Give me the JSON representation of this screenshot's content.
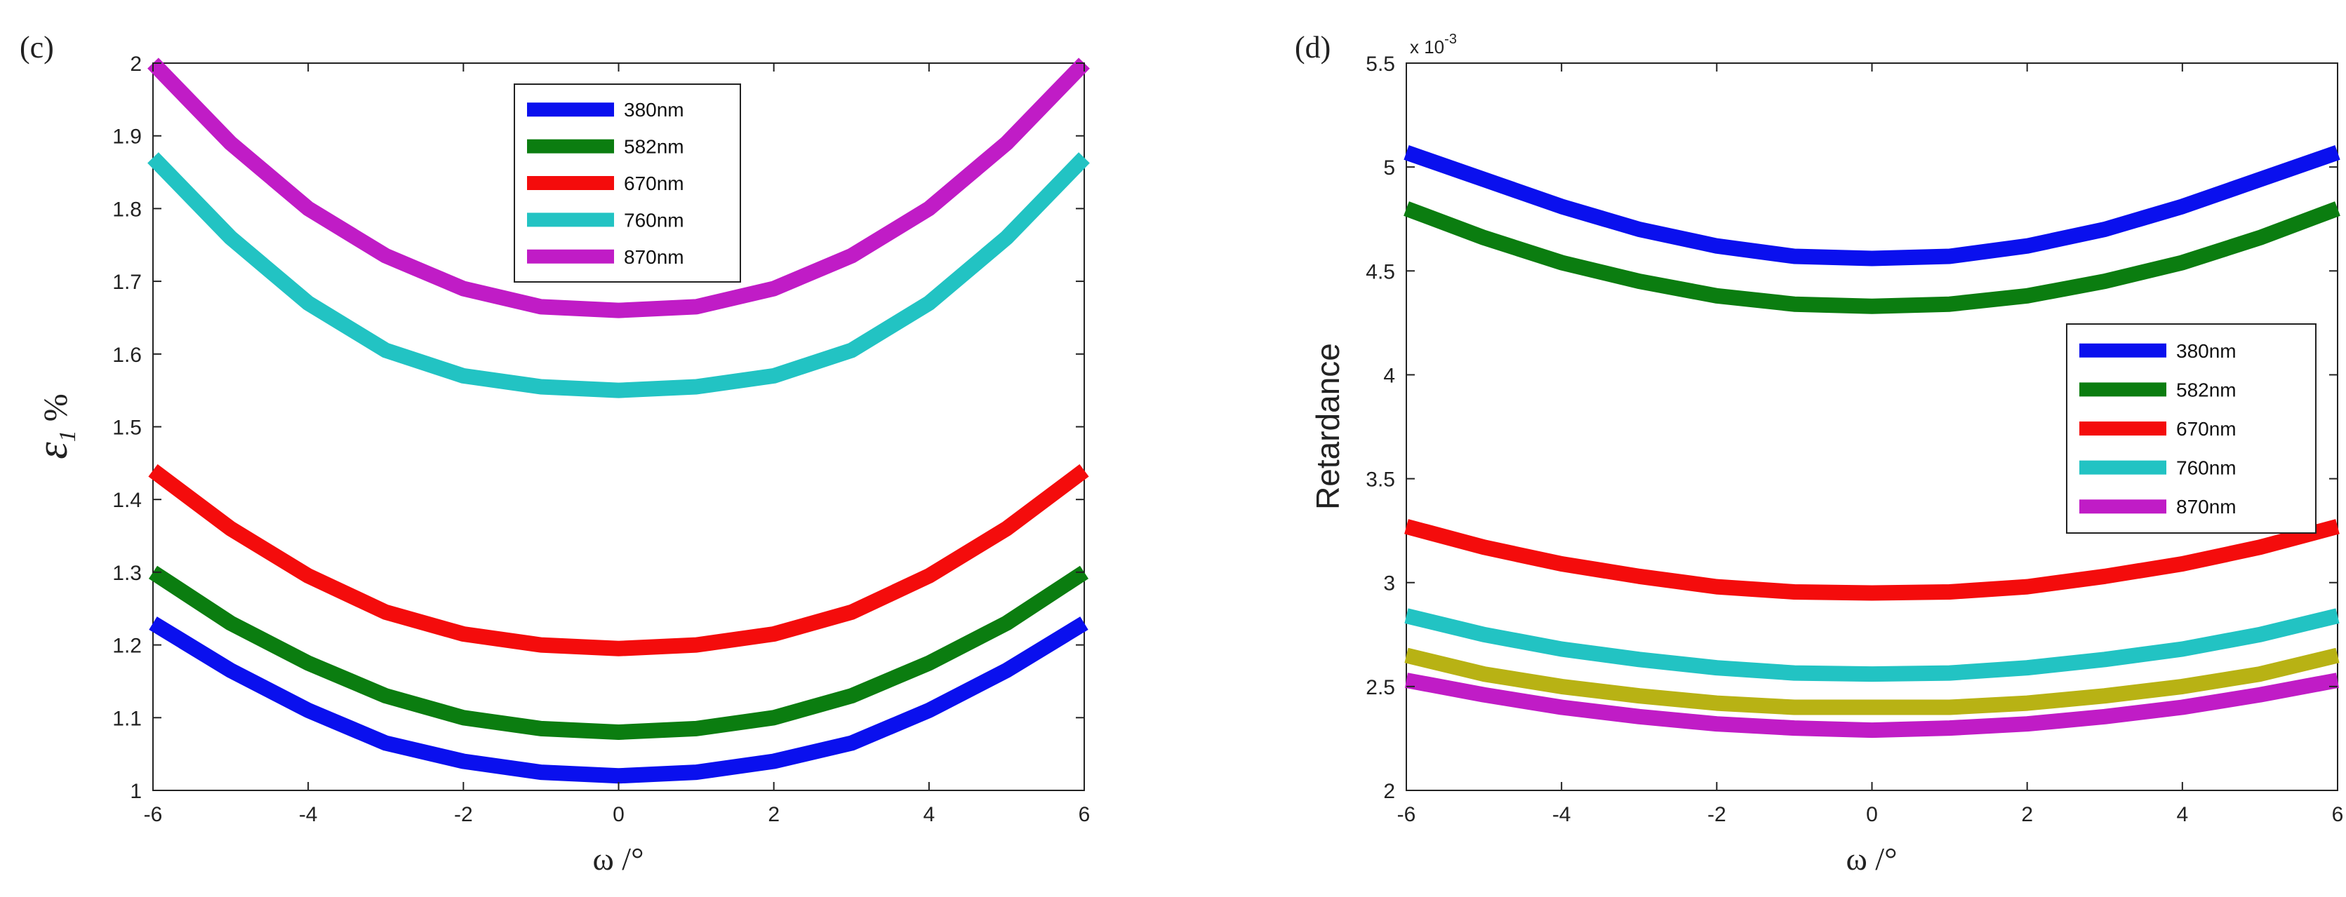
{
  "chart_data": [
    {
      "type": "line",
      "panel_label": "(c)",
      "title": "",
      "xlabel": "ω /°",
      "ylabel": "ε1 %",
      "ylabel_symbol": "ε",
      "ylabel_subscript": "1",
      "ylabel_suffix": " %",
      "xlim": [
        -6,
        6
      ],
      "ylim": [
        1,
        2
      ],
      "xticks": [
        -6,
        -4,
        -2,
        0,
        2,
        4,
        6
      ],
      "xtick_labels": [
        "-6",
        "-4",
        "-2",
        "0",
        "2",
        "4",
        "6"
      ],
      "yticks": [
        1,
        1.1,
        1.2,
        1.3,
        1.4,
        1.5,
        1.6,
        1.7,
        1.8,
        1.9,
        2
      ],
      "ytick_labels": [
        "1",
        "1.1",
        "1.2",
        "1.3",
        "1.4",
        "1.5",
        "1.6",
        "1.7",
        "1.8",
        "1.9",
        "2"
      ],
      "grid": false,
      "legend_position": "top-center",
      "x": [
        -6,
        -5,
        -4,
        -3,
        -2,
        -1,
        0,
        1,
        2,
        3,
        4,
        5,
        6
      ],
      "series": [
        {
          "name": "380nm",
          "color": "#0a10ee",
          "values": [
            1.23,
            1.165,
            1.11,
            1.065,
            1.04,
            1.025,
            1.02,
            1.025,
            1.04,
            1.065,
            1.11,
            1.165,
            1.23
          ]
        },
        {
          "name": "582nm",
          "color": "#0b7d10",
          "values": [
            1.3,
            1.23,
            1.175,
            1.13,
            1.1,
            1.085,
            1.08,
            1.085,
            1.1,
            1.13,
            1.175,
            1.23,
            1.3
          ]
        },
        {
          "name": "670nm",
          "color": "#f40c0c",
          "values": [
            1.44,
            1.36,
            1.295,
            1.245,
            1.215,
            1.2,
            1.195,
            1.2,
            1.215,
            1.245,
            1.295,
            1.36,
            1.44
          ]
        },
        {
          "name": "760nm",
          "color": "#22c3c3",
          "values": [
            1.87,
            1.76,
            1.67,
            1.605,
            1.57,
            1.555,
            1.55,
            1.555,
            1.57,
            1.605,
            1.67,
            1.76,
            1.87
          ]
        },
        {
          "name": "870nm",
          "color": "#c01cc6",
          "values": [
            2.0,
            1.89,
            1.8,
            1.735,
            1.69,
            1.665,
            1.66,
            1.665,
            1.69,
            1.735,
            1.8,
            1.89,
            2.0
          ]
        }
      ]
    },
    {
      "type": "line",
      "panel_label": "(d)",
      "title": "",
      "xlabel": "ω /°",
      "ylabel": "Retardance",
      "y_multiplier": "× 10⁻³",
      "y_multiplier_base": "x 10",
      "y_multiplier_exp": "-3",
      "xlim": [
        -6,
        6
      ],
      "ylim": [
        2,
        5.5
      ],
      "xticks": [
        -6,
        -4,
        -2,
        0,
        2,
        4,
        6
      ],
      "xtick_labels": [
        "-6",
        "-4",
        "-2",
        "0",
        "2",
        "4",
        "6"
      ],
      "yticks": [
        2,
        2.5,
        3,
        3.5,
        4,
        4.5,
        5,
        5.5
      ],
      "ytick_labels": [
        "2",
        "2.5",
        "3",
        "3.5",
        "4",
        "4.5",
        "5",
        "5.5"
      ],
      "grid": false,
      "legend_position": "right",
      "x": [
        -6,
        -5,
        -4,
        -3,
        -2,
        -1,
        0,
        1,
        2,
        3,
        4,
        5,
        6
      ],
      "series": [
        {
          "name": "380nm",
          "color": "#0a10ee",
          "values": [
            5.07,
            4.94,
            4.81,
            4.7,
            4.62,
            4.57,
            4.56,
            4.57,
            4.62,
            4.7,
            4.81,
            4.94,
            5.07
          ]
        },
        {
          "name": "582nm",
          "color": "#0b7d10",
          "values": [
            4.8,
            4.66,
            4.54,
            4.45,
            4.38,
            4.34,
            4.33,
            4.34,
            4.38,
            4.45,
            4.54,
            4.66,
            4.8
          ]
        },
        {
          "name": "670nm",
          "color": "#f40c0c",
          "values": [
            3.27,
            3.17,
            3.09,
            3.03,
            2.98,
            2.955,
            2.95,
            2.955,
            2.98,
            3.03,
            3.09,
            3.17,
            3.27
          ]
        },
        {
          "name": "760nm",
          "color": "#22c3c3",
          "values": [
            2.84,
            2.75,
            2.68,
            2.63,
            2.59,
            2.565,
            2.56,
            2.565,
            2.59,
            2.63,
            2.68,
            2.75,
            2.84
          ]
        },
        {
          "name": "870nm",
          "color": "#c01cc6",
          "values": [
            2.53,
            2.46,
            2.4,
            2.355,
            2.32,
            2.3,
            2.29,
            2.3,
            2.32,
            2.355,
            2.4,
            2.46,
            2.53
          ]
        },
        {
          "name": "",
          "color": "#b8b214",
          "in_legend": false,
          "values": [
            2.65,
            2.56,
            2.5,
            2.455,
            2.42,
            2.4,
            2.4,
            2.4,
            2.42,
            2.455,
            2.5,
            2.56,
            2.65
          ]
        }
      ]
    }
  ]
}
